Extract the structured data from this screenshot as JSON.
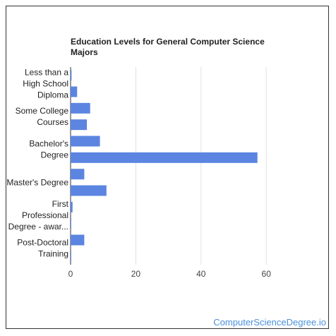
{
  "chart_data": {
    "type": "bar",
    "orientation": "horizontal",
    "title": "Education Levels for General Computer Science Majors",
    "xlabel": "",
    "ylabel": "",
    "xlim": [
      0,
      60
    ],
    "x_ticks": [
      0,
      20,
      40,
      60
    ],
    "grid": true,
    "bar_color": "#5b85e0",
    "grid_color": "#e0e0e0",
    "category_labels": [
      {
        "lines": [
          "Less than a",
          "High School",
          "Diploma"
        ]
      },
      {
        "lines": [
          "Some College",
          "Courses"
        ]
      },
      {
        "lines": [
          "Bachelor's",
          "Degree"
        ]
      },
      {
        "lines": [
          "Master's Degree"
        ]
      },
      {
        "lines": [
          "First",
          "Professional",
          "Degree - awar..."
        ]
      },
      {
        "lines": [
          "Post-Doctoral",
          "Training"
        ]
      }
    ],
    "values": [
      0.3,
      2.0,
      6.0,
      5.0,
      9.0,
      57.3,
      4.2,
      11.0,
      0.6,
      0.2,
      4.2,
      0.2
    ]
  },
  "footer": {
    "brand": "ComputerScienceDegree.io"
  }
}
